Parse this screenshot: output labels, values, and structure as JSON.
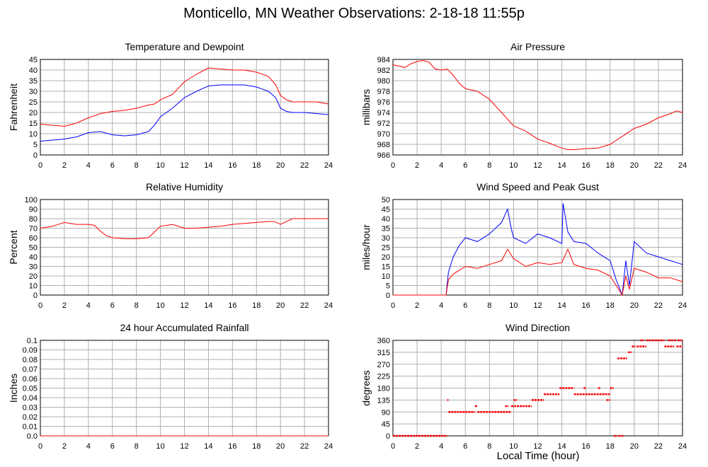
{
  "page": {
    "title": "Monticello, MN Weather Observations: 2-18-18 11:55p",
    "xlabel": "Local Time (hour)"
  },
  "colors": {
    "primary": "#ff0000",
    "secondary": "#0000ff",
    "grid": "#b0b0b0",
    "frame": "#000000"
  },
  "chart_data": [
    {
      "id": "temperature-dewpoint",
      "type": "line",
      "title": "Temperature and Dewpoint",
      "xlabel": "",
      "ylabel": "Fahrenheit",
      "xlim": [
        0,
        24
      ],
      "ylim": [
        0,
        45
      ],
      "xticks": [
        0,
        2,
        4,
        6,
        8,
        10,
        12,
        14,
        16,
        18,
        20,
        22,
        24
      ],
      "yticks": [
        0,
        5,
        10,
        15,
        20,
        25,
        30,
        35,
        40,
        45
      ],
      "grid": true,
      "series": [
        {
          "color": "#ff0000",
          "x": [
            0,
            1,
            2,
            3,
            4,
            5,
            6,
            7,
            8,
            9,
            9.5,
            10,
            11,
            12,
            13,
            14,
            15,
            16,
            17,
            18,
            19,
            19.6,
            20,
            20.5,
            21,
            22,
            23,
            24
          ],
          "y": [
            14.5,
            14,
            13.5,
            15,
            17.5,
            19.5,
            20.5,
            21,
            22,
            23.5,
            24,
            26,
            28.5,
            34.5,
            38,
            41,
            40.5,
            40,
            40,
            39,
            37,
            33,
            28,
            26,
            25,
            25,
            25,
            24
          ]
        },
        {
          "color": "#0000ff",
          "x": [
            0,
            1,
            2,
            3,
            4,
            5,
            6,
            7,
            8,
            9,
            9.5,
            10,
            11,
            12,
            13,
            14,
            15,
            16,
            17,
            18,
            19,
            19.6,
            20,
            20.5,
            21,
            22,
            23,
            24
          ],
          "y": [
            6.5,
            7,
            7.5,
            8.5,
            10.5,
            11,
            9.5,
            9,
            9.5,
            11,
            14,
            18,
            22,
            27,
            30,
            32.5,
            33,
            33,
            33,
            32,
            30,
            27,
            22,
            20.5,
            20,
            20,
            19.5,
            19
          ]
        }
      ]
    },
    {
      "id": "air-pressure",
      "type": "line",
      "title": "Air Pressure",
      "xlabel": "",
      "ylabel": "millibars",
      "xlim": [
        0,
        24
      ],
      "ylim": [
        966,
        984
      ],
      "xticks": [
        0,
        2,
        4,
        6,
        8,
        10,
        12,
        14,
        16,
        18,
        20,
        22,
        24
      ],
      "yticks": [
        966,
        968,
        970,
        972,
        974,
        976,
        978,
        980,
        982,
        984
      ],
      "grid": true,
      "series": [
        {
          "color": "#ff0000",
          "x": [
            0,
            1,
            1.5,
            2,
            2.5,
            3,
            3.5,
            4,
            4.5,
            5,
            5.5,
            6,
            7,
            8,
            9,
            10,
            11,
            12,
            13,
            14,
            14.5,
            15,
            16,
            17,
            18,
            19,
            20,
            21,
            22,
            23,
            23.5,
            24
          ],
          "y": [
            983,
            982.5,
            983.2,
            983.6,
            983.8,
            983.5,
            982.2,
            982,
            982.2,
            981,
            979.5,
            978.5,
            978,
            976.5,
            974,
            971.5,
            970.5,
            969,
            968.2,
            967.3,
            967,
            967,
            967.2,
            967.3,
            968,
            969.5,
            971,
            971.8,
            973,
            973.8,
            974.3,
            974
          ]
        }
      ]
    },
    {
      "id": "relative-humidity",
      "type": "line",
      "title": "Relative Humidity",
      "xlabel": "",
      "ylabel": "Percent",
      "xlim": [
        0,
        24
      ],
      "ylim": [
        0,
        100
      ],
      "xticks": [
        0,
        2,
        4,
        6,
        8,
        10,
        12,
        14,
        16,
        18,
        20,
        22,
        24
      ],
      "yticks": [
        0,
        10,
        20,
        30,
        40,
        50,
        60,
        70,
        80,
        90,
        100
      ],
      "grid": true,
      "series": [
        {
          "color": "#ff0000",
          "x": [
            0,
            1,
            2,
            3,
            4,
            4.5,
            5,
            5.5,
            6,
            7,
            8,
            9,
            9.5,
            10,
            11,
            12,
            13,
            14,
            15,
            16,
            17,
            18,
            19,
            19.5,
            20,
            20.5,
            21,
            22,
            23,
            24
          ],
          "y": [
            70,
            72,
            76,
            74,
            74,
            73,
            67,
            62,
            60,
            59,
            59,
            60,
            66,
            72,
            74,
            70,
            70,
            71,
            72,
            74,
            75,
            76,
            77,
            77,
            74,
            77,
            80,
            80,
            80,
            80
          ]
        }
      ]
    },
    {
      "id": "wind-speed-gust",
      "type": "line",
      "title": "Wind Speed and Peak Gust",
      "xlabel": "",
      "ylabel": "miles/hour",
      "xlim": [
        0,
        24
      ],
      "ylim": [
        0,
        50
      ],
      "xticks": [
        0,
        2,
        4,
        6,
        8,
        10,
        12,
        14,
        16,
        18,
        20,
        22,
        24
      ],
      "yticks": [
        0,
        5,
        10,
        15,
        20,
        25,
        30,
        35,
        40,
        45,
        50
      ],
      "grid": true,
      "series": [
        {
          "color": "#0000ff",
          "x": [
            0,
            1,
            2,
            3,
            4,
            4.4,
            4.6,
            5,
            5.5,
            6,
            7,
            8,
            9,
            9.5,
            9.8,
            10,
            11,
            12,
            13,
            14,
            14.1,
            14.5,
            15,
            16,
            17,
            18,
            18.5,
            19,
            19.3,
            19.6,
            20,
            21,
            22,
            23,
            24
          ],
          "y": [
            0,
            0,
            0,
            0,
            0,
            0,
            12,
            20,
            26,
            30,
            28,
            32,
            38,
            45,
            35,
            30,
            27,
            32,
            30,
            27,
            48,
            33,
            28,
            27,
            22,
            18,
            8,
            0,
            18,
            5,
            28,
            22,
            20,
            18,
            16
          ]
        },
        {
          "color": "#ff0000",
          "x": [
            0,
            1,
            2,
            3,
            4,
            4.4,
            4.6,
            5,
            5.5,
            6,
            7,
            8,
            9,
            9.5,
            10,
            11,
            12,
            13,
            14,
            14.5,
            15,
            16,
            17,
            18,
            18.5,
            19,
            19.3,
            19.6,
            20,
            21,
            22,
            23,
            24
          ],
          "y": [
            0,
            0,
            0,
            0,
            0,
            0,
            8,
            11,
            13,
            15,
            14,
            16,
            18,
            24,
            19,
            15,
            17,
            16,
            17,
            24,
            16,
            14,
            13,
            10,
            5,
            0,
            10,
            3,
            14,
            12,
            9,
            9,
            7
          ]
        }
      ]
    },
    {
      "id": "rainfall",
      "type": "line",
      "title": "24 hour Accumulated Rainfall",
      "xlabel": "",
      "ylabel": "Inches",
      "xlim": [
        0,
        24
      ],
      "ylim": [
        0,
        0.1
      ],
      "xticks": [
        0,
        2,
        4,
        6,
        8,
        10,
        12,
        14,
        16,
        18,
        20,
        22,
        24
      ],
      "yticks": [
        "0.0",
        "0.01",
        "0.02",
        "0.03",
        "0.04",
        "0.05",
        "0.06",
        "0.07",
        "0.08",
        "0.09",
        "0.1"
      ],
      "grid": true,
      "series": [
        {
          "color": "#ff0000",
          "x": [
            0,
            24
          ],
          "y": [
            0,
            0
          ]
        }
      ]
    },
    {
      "id": "wind-direction",
      "type": "scatter",
      "title": "Wind Direction",
      "xlabel": "",
      "ylabel": "degrees",
      "xlim": [
        0,
        24
      ],
      "ylim": [
        0,
        360
      ],
      "xticks": [
        0,
        2,
        4,
        6,
        8,
        10,
        12,
        14,
        16,
        18,
        20,
        22,
        24
      ],
      "yticks": [
        0,
        45,
        90,
        135,
        180,
        225,
        270,
        315,
        360
      ],
      "grid": true,
      "series": [
        {
          "color": "#ff0000",
          "segments": [
            [
              0,
              4.5,
              0
            ],
            [
              4.5,
              4.6,
              135
            ],
            [
              4.6,
              6.8,
              90
            ],
            [
              6.8,
              7.0,
              112
            ],
            [
              7.0,
              9.8,
              90
            ],
            [
              9.3,
              9.6,
              112
            ],
            [
              9.8,
              11.5,
              112
            ],
            [
              10.0,
              10.3,
              135
            ],
            [
              11.5,
              12.5,
              135
            ],
            [
              12.5,
              13.8,
              157
            ],
            [
              13.8,
              15.0,
              180
            ],
            [
              15.0,
              18.0,
              157
            ],
            [
              15.8,
              16.0,
              180
            ],
            [
              17.0,
              17.2,
              180
            ],
            [
              17.7,
              18.0,
              135
            ],
            [
              18.0,
              18.3,
              180
            ],
            [
              18.3,
              18.6,
              0
            ],
            [
              18.7,
              19.1,
              0
            ],
            [
              18.6,
              19.4,
              292
            ],
            [
              19.5,
              19.8,
              315
            ],
            [
              19.8,
              20.1,
              337
            ],
            [
              20.2,
              21.0,
              337
            ],
            [
              20.5,
              20.8,
              360
            ],
            [
              21.0,
              22.5,
              360
            ],
            [
              22.5,
              23.3,
              337
            ],
            [
              22.8,
              23.5,
              360
            ],
            [
              23.5,
              24.0,
              337
            ],
            [
              23.6,
              24.0,
              360
            ]
          ]
        }
      ]
    }
  ]
}
